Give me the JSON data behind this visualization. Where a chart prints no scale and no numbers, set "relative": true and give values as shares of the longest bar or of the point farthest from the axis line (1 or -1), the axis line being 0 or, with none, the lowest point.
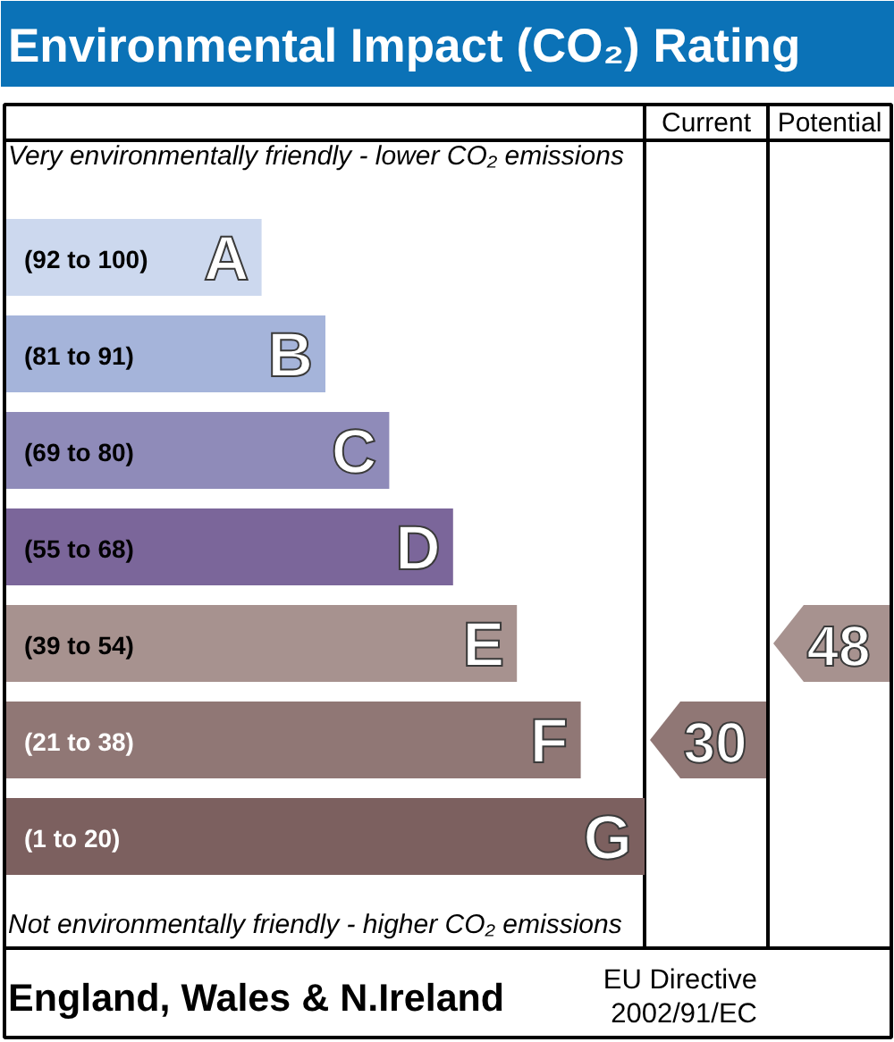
{
  "chart_data": {
    "type": "bar",
    "orientation": "horizontal",
    "relative": true,
    "title": "Environmental Impact (CO₂) Rating",
    "categories": [
      "A",
      "B",
      "C",
      "D",
      "E",
      "F",
      "G"
    ],
    "values": [
      0.4,
      0.5,
      0.6,
      0.7,
      0.8,
      0.9,
      1
    ],
    "colors": [
      "#ccd8ee",
      "#a5b4da",
      "#8f8bb9",
      "#7b669a",
      "#a7928f",
      "#907775",
      "#7c605f"
    ],
    "annotations": [
      "Very environmentally friendly - lower CO₂ emissions",
      "Not environmentally friendly - higher CO₂ emissions",
      "Current",
      "Potential",
      "30",
      "48",
      "England, Wales & N.Ireland",
      "EU Directive",
      "2002/91/EC",
      "(92 to 100)",
      "(81 to 91)",
      "(69 to 80)",
      "(55 to 68)",
      "(39 to 54)",
      "(21 to 38)",
      "(1 to 20)"
    ]
  }
}
